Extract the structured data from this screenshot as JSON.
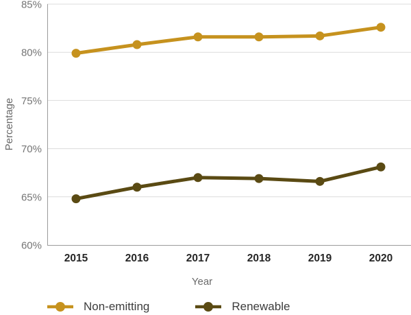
{
  "chart_data": {
    "type": "line",
    "title": "",
    "xlabel": "Year",
    "ylabel": "Percentage",
    "categories": [
      "2015",
      "2016",
      "2017",
      "2018",
      "2019",
      "2020"
    ],
    "series": [
      {
        "name": "Non-emitting",
        "color": "#C6921E",
        "values": [
          79.9,
          80.8,
          81.6,
          81.6,
          81.7,
          82.6
        ]
      },
      {
        "name": "Renewable",
        "color": "#5A4A13",
        "values": [
          64.8,
          66.0,
          67.0,
          66.9,
          66.6,
          68.1
        ]
      }
    ],
    "ylim": [
      60,
      85
    ],
    "yticks": [
      60,
      65,
      70,
      75,
      80,
      85
    ],
    "ytick_labels": [
      "60%",
      "65%",
      "70%",
      "75%",
      "80%",
      "85%"
    ],
    "grid": true,
    "legend_position": "bottom"
  },
  "axes": {
    "x_title": "Year",
    "y_title": "Percentage"
  },
  "legend": {
    "items": [
      {
        "label": "Non-emitting",
        "color": "#C6921E"
      },
      {
        "label": "Renewable",
        "color": "#5A4A13"
      }
    ]
  },
  "colors": {
    "background": "#FFFFFF",
    "gridline": "#DCDCDC",
    "axis_line": "#9A9A9A",
    "tick_label": "#757575",
    "x_tick_label": "#262626",
    "axis_title": "#6A6A6A",
    "legend_text": "#3C3C3C",
    "non_emitting": "#C6921E",
    "renewable": "#5A4A13"
  }
}
